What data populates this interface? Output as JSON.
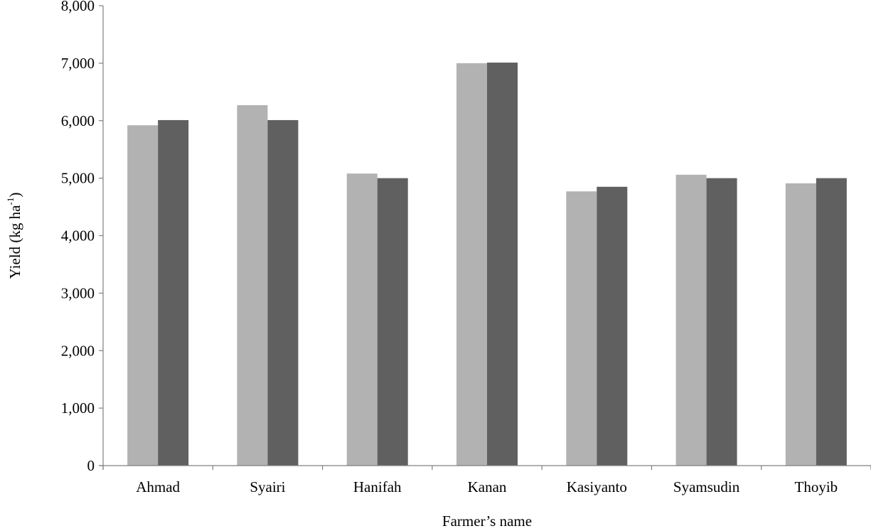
{
  "chart_data": {
    "type": "bar",
    "title": "",
    "xlabel": "Farmer’s name",
    "ylabel": "Yield (kg ha",
    "ylabel_superscript": "-1",
    "ylabel_suffix": ")",
    "ylim": [
      0,
      8000
    ],
    "yticks": [
      0,
      1000,
      2000,
      3000,
      4000,
      5000,
      6000,
      7000,
      8000
    ],
    "ytick_labels": [
      "0",
      "1,000",
      "2,000",
      "3,000",
      "4,000",
      "5,000",
      "6,000",
      "7,000",
      "8,000"
    ],
    "grid": false,
    "legend": "none",
    "categories": [
      "Ahmad",
      "Syairi",
      "Hanifah",
      "Kanan",
      "Kasiyanto",
      "Syamsudin",
      "Thoyib"
    ],
    "series": [
      {
        "color": "#b2b2b2",
        "values": [
          5920,
          6270,
          5080,
          7000,
          4770,
          5060,
          4910
        ]
      },
      {
        "color": "#606060",
        "values": [
          6010,
          6010,
          5000,
          7010,
          4850,
          5000,
          5000
        ]
      }
    ]
  }
}
